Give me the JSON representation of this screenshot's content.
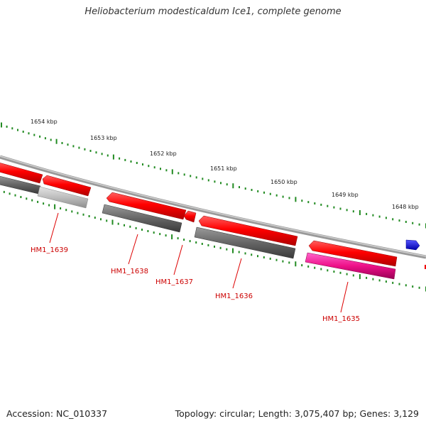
{
  "header": {
    "title": "Heliobacterium modesticaldum Ice1, complete genome"
  },
  "footer": {
    "accession": "Accession: NC_010337",
    "summary": "Topology: circular; Length: 3,075,407 bp; Genes: 3,129"
  },
  "scale": {
    "labels": [
      "1654 kbp",
      "1653 kbp",
      "1652 kbp",
      "1651 kbp",
      "1650 kbp",
      "1649 kbp",
      "1648 kbp"
    ],
    "tick_color": "#228B22"
  },
  "genes": {
    "labels": [
      "HM1_1639",
      "HM1_1638",
      "HM1_1637",
      "HM1_1636",
      "HM1_1635"
    ],
    "label_color": "#cc0000"
  },
  "colors": {
    "backbone": "#888888",
    "forward_gene": "#ff0000",
    "reverse_gene": "#ff0000",
    "gray_feature": "#666666",
    "light_gray_feature": "#bbbbbb",
    "magenta_feature": "#ee1188",
    "blue_feature": "#0000ee"
  }
}
